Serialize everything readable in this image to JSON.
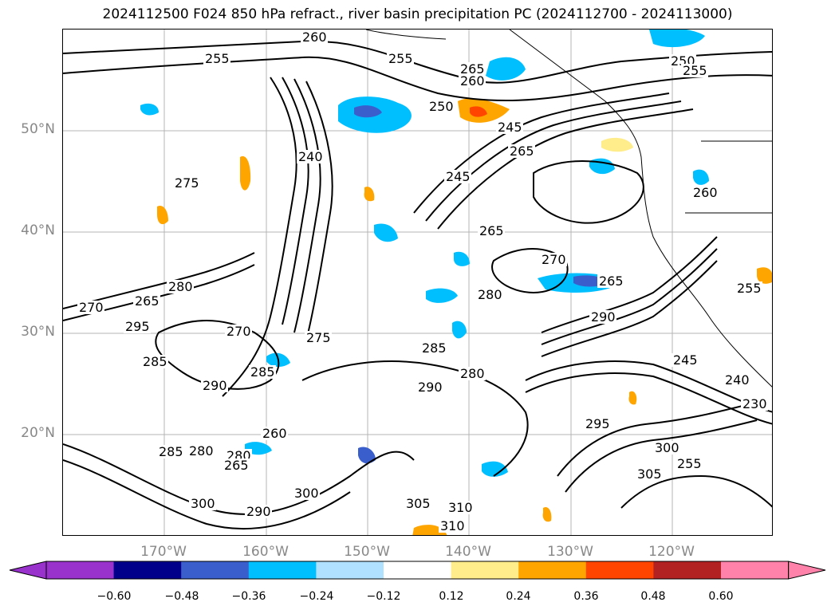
{
  "title": "2024112500 F024 850 hPa refract., river basin precipitation PC (2024112700 - 2024113000)",
  "map": {
    "lat_labels": [
      "50°N",
      "40°N",
      "30°N",
      "20°N"
    ],
    "lon_labels": [
      "170°W",
      "160°W",
      "150°W",
      "140°W",
      "130°W",
      "120°W"
    ],
    "gridlines": true
  },
  "contour_labels": [
    {
      "text": "260"
    },
    {
      "text": "255"
    },
    {
      "text": "255"
    },
    {
      "text": "265"
    },
    {
      "text": "260"
    },
    {
      "text": "250"
    },
    {
      "text": "255"
    },
    {
      "text": "250"
    },
    {
      "text": "245"
    },
    {
      "text": "265"
    },
    {
      "text": "240"
    },
    {
      "text": "245"
    },
    {
      "text": "275"
    },
    {
      "text": "260"
    },
    {
      "text": "265"
    },
    {
      "text": "270"
    },
    {
      "text": "265"
    },
    {
      "text": "280"
    },
    {
      "text": "290"
    },
    {
      "text": "280"
    },
    {
      "text": "275"
    },
    {
      "text": "270"
    },
    {
      "text": "270"
    },
    {
      "text": "265"
    },
    {
      "text": "295"
    },
    {
      "text": "285"
    },
    {
      "text": "290"
    },
    {
      "text": "285"
    },
    {
      "text": "285"
    },
    {
      "text": "280"
    },
    {
      "text": "290"
    },
    {
      "text": "240"
    },
    {
      "text": "230"
    },
    {
      "text": "295"
    },
    {
      "text": "305"
    },
    {
      "text": "300"
    },
    {
      "text": "300"
    },
    {
      "text": "305"
    },
    {
      "text": "310"
    },
    {
      "text": "310"
    },
    {
      "text": "280"
    },
    {
      "text": "290"
    },
    {
      "text": "300"
    },
    {
      "text": "280"
    },
    {
      "text": "265"
    },
    {
      "text": "260"
    },
    {
      "text": "285"
    },
    {
      "text": "245"
    },
    {
      "text": "255"
    },
    {
      "text": "255"
    }
  ],
  "colorbar": {
    "ticks": [
      "−0.60",
      "−0.48",
      "−0.36",
      "−0.24",
      "−0.12",
      "0.12",
      "0.24",
      "0.36",
      "0.48",
      "0.60"
    ],
    "colors": [
      "#9932cc",
      "#00008b",
      "#3a5fcd",
      "#00bfff",
      "#b0e2ff",
      "#ffffff",
      "#ffec8b",
      "#ffa500",
      "#ff4500",
      "#b22222",
      "#ff82ab"
    ],
    "extend": "both"
  }
}
